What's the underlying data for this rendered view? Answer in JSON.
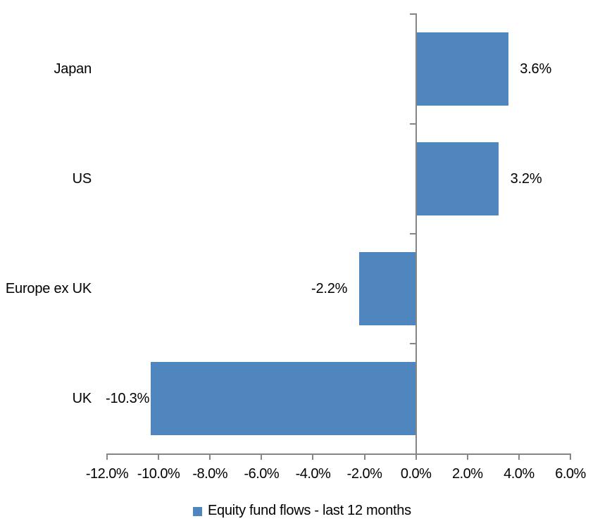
{
  "chart_data": {
    "type": "bar",
    "orientation": "horizontal",
    "title": "",
    "categories": [
      "Japan",
      "US",
      "Europe ex UK",
      "UK"
    ],
    "series": [
      {
        "name": "Equity fund flows - last 12 months",
        "values": [
          3.6,
          3.2,
          -2.2,
          -10.3
        ]
      }
    ],
    "data_labels": [
      "3.6%",
      "3.2%",
      "-2.2%",
      "-10.3%"
    ],
    "xlim": [
      -12,
      6
    ],
    "x_ticks": [
      -12,
      -10,
      -8,
      -6,
      -4,
      -2,
      0,
      2,
      4,
      6
    ],
    "x_tick_labels": [
      "-12.0%",
      "-10.0%",
      "-8.0%",
      "-6.0%",
      "-4.0%",
      "-2.0%",
      "0.0%",
      "2.0%",
      "4.0%",
      "6.0%"
    ],
    "grid": false,
    "legend": {
      "label": "Equity fund flows - last 12 months",
      "position": "bottom"
    },
    "colors": {
      "bar": "#4E86BD",
      "axis": "#868686",
      "text": "#000000",
      "background": "#FFFFFF"
    }
  }
}
